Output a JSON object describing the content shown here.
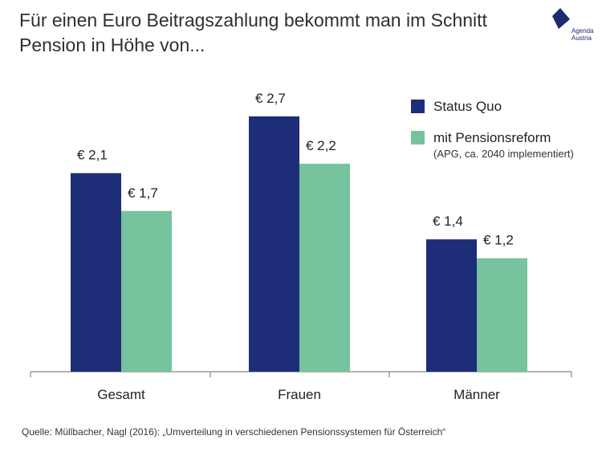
{
  "title_lines": [
    "Für einen Euro Beitragszahlung bekommt man im Schnitt",
    "Pension in Höhe von..."
  ],
  "logo": {
    "line1": "Agenda",
    "line2": "Austria",
    "color": "#1d2a6e"
  },
  "legend": {
    "status_quo": "Status Quo",
    "reform": "mit Pensionsreform",
    "reform_note": "(APG, ca. 2040 implementiert)"
  },
  "source": "Quelle: Müllbacher, Nagl (2016): „Umverteilung in verschiedenen Pensionssystemen für Österreich“",
  "colors": {
    "status_quo": "#1e2d78",
    "reform": "#76c39d",
    "axis": "#9a9a9a"
  },
  "chart_data": {
    "type": "bar",
    "title": "Für einen Euro Beitragszahlung bekommt man im Schnitt Pension in Höhe von...",
    "categories": [
      "Gesamt",
      "Frauen",
      "Männer"
    ],
    "series": [
      {
        "name": "Status Quo",
        "values": [
          2.1,
          2.7,
          1.4
        ],
        "labels": [
          "€ 2,1",
          "€ 2,7",
          "€ 1,4"
        ]
      },
      {
        "name": "mit Pensionsreform",
        "values": [
          1.7,
          2.2,
          1.2
        ],
        "labels": [
          "€ 1,7",
          "€ 2,2",
          "€ 1,2"
        ]
      }
    ],
    "xlabel": "",
    "ylabel": "",
    "ylim": [
      0,
      2.7
    ],
    "grid": false,
    "legend_position": "top-right"
  }
}
